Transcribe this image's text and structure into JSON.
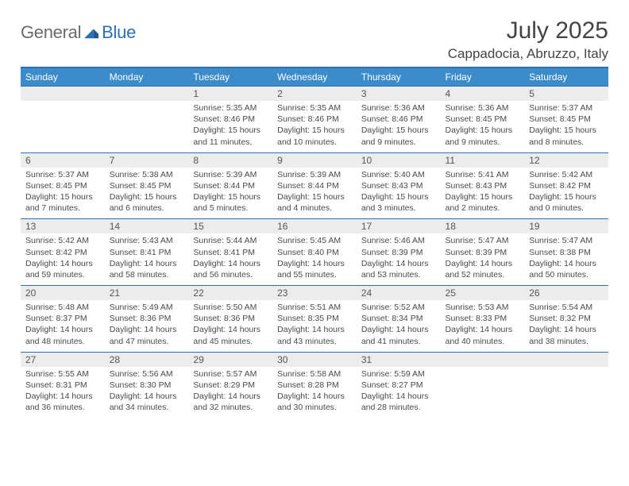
{
  "brand": {
    "name_a": "General",
    "name_b": "Blue"
  },
  "title": "July 2025",
  "location": "Cappadocia, Abruzzo, Italy",
  "colors": {
    "header_bg": "#3c8ccc",
    "rule": "#2f6fb3",
    "daynum_bg": "#ececec",
    "text": "#4a4a4a",
    "logo_gray": "#6b6b6b",
    "logo_blue": "#2f6fb3"
  },
  "day_names": [
    "Sunday",
    "Monday",
    "Tuesday",
    "Wednesday",
    "Thursday",
    "Friday",
    "Saturday"
  ],
  "weeks": [
    [
      {
        "blank": true
      },
      {
        "blank": true
      },
      {
        "n": "1",
        "sunrise": "5:35 AM",
        "sunset": "8:46 PM",
        "daylight": "15 hours and 11 minutes."
      },
      {
        "n": "2",
        "sunrise": "5:35 AM",
        "sunset": "8:46 PM",
        "daylight": "15 hours and 10 minutes."
      },
      {
        "n": "3",
        "sunrise": "5:36 AM",
        "sunset": "8:46 PM",
        "daylight": "15 hours and 9 minutes."
      },
      {
        "n": "4",
        "sunrise": "5:36 AM",
        "sunset": "8:45 PM",
        "daylight": "15 hours and 9 minutes."
      },
      {
        "n": "5",
        "sunrise": "5:37 AM",
        "sunset": "8:45 PM",
        "daylight": "15 hours and 8 minutes."
      }
    ],
    [
      {
        "n": "6",
        "sunrise": "5:37 AM",
        "sunset": "8:45 PM",
        "daylight": "15 hours and 7 minutes."
      },
      {
        "n": "7",
        "sunrise": "5:38 AM",
        "sunset": "8:45 PM",
        "daylight": "15 hours and 6 minutes."
      },
      {
        "n": "8",
        "sunrise": "5:39 AM",
        "sunset": "8:44 PM",
        "daylight": "15 hours and 5 minutes."
      },
      {
        "n": "9",
        "sunrise": "5:39 AM",
        "sunset": "8:44 PM",
        "daylight": "15 hours and 4 minutes."
      },
      {
        "n": "10",
        "sunrise": "5:40 AM",
        "sunset": "8:43 PM",
        "daylight": "15 hours and 3 minutes."
      },
      {
        "n": "11",
        "sunrise": "5:41 AM",
        "sunset": "8:43 PM",
        "daylight": "15 hours and 2 minutes."
      },
      {
        "n": "12",
        "sunrise": "5:42 AM",
        "sunset": "8:42 PM",
        "daylight": "15 hours and 0 minutes."
      }
    ],
    [
      {
        "n": "13",
        "sunrise": "5:42 AM",
        "sunset": "8:42 PM",
        "daylight": "14 hours and 59 minutes."
      },
      {
        "n": "14",
        "sunrise": "5:43 AM",
        "sunset": "8:41 PM",
        "daylight": "14 hours and 58 minutes."
      },
      {
        "n": "15",
        "sunrise": "5:44 AM",
        "sunset": "8:41 PM",
        "daylight": "14 hours and 56 minutes."
      },
      {
        "n": "16",
        "sunrise": "5:45 AM",
        "sunset": "8:40 PM",
        "daylight": "14 hours and 55 minutes."
      },
      {
        "n": "17",
        "sunrise": "5:46 AM",
        "sunset": "8:39 PM",
        "daylight": "14 hours and 53 minutes."
      },
      {
        "n": "18",
        "sunrise": "5:47 AM",
        "sunset": "8:39 PM",
        "daylight": "14 hours and 52 minutes."
      },
      {
        "n": "19",
        "sunrise": "5:47 AM",
        "sunset": "8:38 PM",
        "daylight": "14 hours and 50 minutes."
      }
    ],
    [
      {
        "n": "20",
        "sunrise": "5:48 AM",
        "sunset": "8:37 PM",
        "daylight": "14 hours and 48 minutes."
      },
      {
        "n": "21",
        "sunrise": "5:49 AM",
        "sunset": "8:36 PM",
        "daylight": "14 hours and 47 minutes."
      },
      {
        "n": "22",
        "sunrise": "5:50 AM",
        "sunset": "8:36 PM",
        "daylight": "14 hours and 45 minutes."
      },
      {
        "n": "23",
        "sunrise": "5:51 AM",
        "sunset": "8:35 PM",
        "daylight": "14 hours and 43 minutes."
      },
      {
        "n": "24",
        "sunrise": "5:52 AM",
        "sunset": "8:34 PM",
        "daylight": "14 hours and 41 minutes."
      },
      {
        "n": "25",
        "sunrise": "5:53 AM",
        "sunset": "8:33 PM",
        "daylight": "14 hours and 40 minutes."
      },
      {
        "n": "26",
        "sunrise": "5:54 AM",
        "sunset": "8:32 PM",
        "daylight": "14 hours and 38 minutes."
      }
    ],
    [
      {
        "n": "27",
        "sunrise": "5:55 AM",
        "sunset": "8:31 PM",
        "daylight": "14 hours and 36 minutes."
      },
      {
        "n": "28",
        "sunrise": "5:56 AM",
        "sunset": "8:30 PM",
        "daylight": "14 hours and 34 minutes."
      },
      {
        "n": "29",
        "sunrise": "5:57 AM",
        "sunset": "8:29 PM",
        "daylight": "14 hours and 32 minutes."
      },
      {
        "n": "30",
        "sunrise": "5:58 AM",
        "sunset": "8:28 PM",
        "daylight": "14 hours and 30 minutes."
      },
      {
        "n": "31",
        "sunrise": "5:59 AM",
        "sunset": "8:27 PM",
        "daylight": "14 hours and 28 minutes."
      },
      {
        "blank": true
      },
      {
        "blank": true
      }
    ]
  ],
  "labels": {
    "sunrise": "Sunrise:",
    "sunset": "Sunset:",
    "daylight": "Daylight:"
  }
}
